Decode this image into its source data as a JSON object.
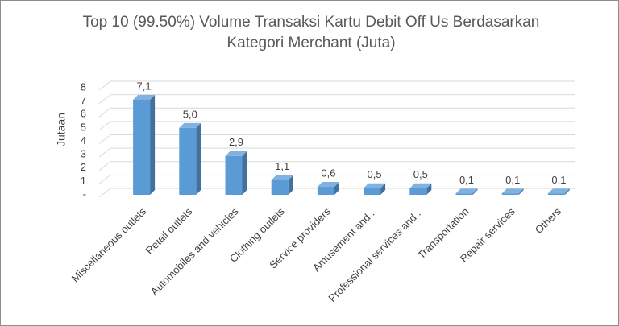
{
  "chart_data": {
    "type": "bar3d",
    "title": "Top 10 (99.50%) Volume Transaksi Kartu Debit Off Us Berdasarkan Kategori Merchant (Juta)",
    "y_label": "Jutaan",
    "categories": [
      "Miscellaneous outlets",
      "Retail outlets",
      "Automobiles and vehicles",
      "Clothing outlets",
      "Service providers",
      "Amusement and...",
      "Professional services and...",
      "Transportation",
      "Repair services",
      "Others"
    ],
    "values": [
      7.1,
      5.0,
      2.9,
      1.1,
      0.6,
      0.5,
      0.5,
      0.1,
      0.1,
      0.1
    ],
    "value_labels": [
      "7,1",
      "5,0",
      "2,9",
      "1,1",
      "0,6",
      "0,5",
      "0,5",
      "0,1",
      "0,1",
      "0,1"
    ],
    "color": "#5b9bd5",
    "ylim": [
      0,
      8
    ],
    "yticks": [
      {
        "value": 0,
        "label": "-"
      },
      1,
      2,
      3,
      4,
      5,
      6,
      7,
      8
    ],
    "grid": true
  }
}
